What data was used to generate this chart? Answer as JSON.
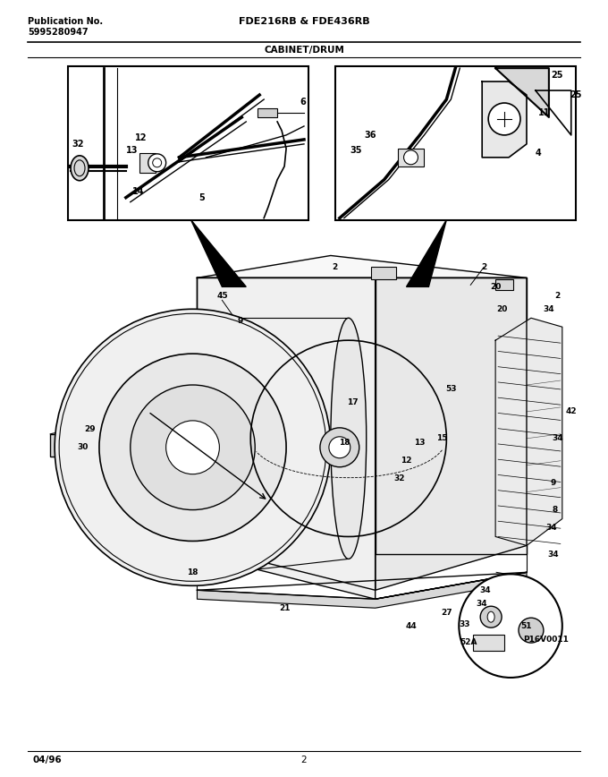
{
  "title_center": "FDE216RB & FDE436RB",
  "subtitle_center": "CABINET/DRUM",
  "pub_label": "Publication No.",
  "pub_number": "5995280947",
  "footer_left": "04/96",
  "footer_center": "2",
  "bg_color": "#ffffff",
  "line_color": "#000000",
  "text_color": "#000000",
  "fig_width": 6.8,
  "fig_height": 8.68,
  "dpi": 100
}
